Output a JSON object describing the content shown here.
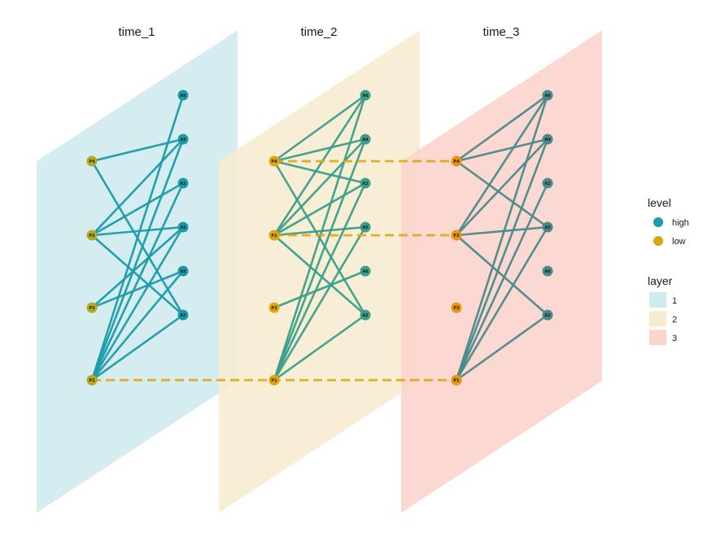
{
  "colors": {
    "plane_1": "#d0ebee",
    "plane_2": "#f6ecd0",
    "plane_3": "#fbd4cc",
    "high": "#1a9ba8",
    "low": "#d4a811",
    "interlayer": "#e0a50a"
  },
  "layers": [
    {
      "title": "time_1",
      "edge_color": "#1a9ba8",
      "high_node_color": "#1a9ba8",
      "low_node_color": "#b8aa1e",
      "low_nodes": [
        "P4",
        "P2",
        "P3",
        "P1"
      ],
      "high_nodes": [
        "A6",
        "A4",
        "A2",
        "A5",
        "A6",
        "A3"
      ],
      "edges": [
        [
          "P4",
          "A4"
        ],
        [
          "P4",
          "A3"
        ],
        [
          "P2",
          "A4"
        ],
        [
          "P2",
          "A2"
        ],
        [
          "P2",
          "A5"
        ],
        [
          "P2",
          "A3"
        ],
        [
          "P3",
          "A5"
        ],
        [
          "P3",
          "A6b"
        ],
        [
          "P1",
          "A6"
        ],
        [
          "P1",
          "A4"
        ],
        [
          "P1",
          "A2"
        ],
        [
          "P1",
          "A5"
        ],
        [
          "P1",
          "A6b"
        ],
        [
          "P1",
          "A3"
        ]
      ]
    },
    {
      "title": "time_2",
      "edge_color": "#3a9e8a",
      "high_node_color": "#3a9e8a",
      "low_node_color": "#e0a50a",
      "low_nodes": [
        "P4",
        "P2",
        "P3",
        "P1"
      ],
      "high_nodes": [
        "A6",
        "A4",
        "A2",
        "A5",
        "A6",
        "A3"
      ],
      "edges": [
        [
          "P4",
          "A6"
        ],
        [
          "P4",
          "A4"
        ],
        [
          "P4",
          "A2"
        ],
        [
          "P4",
          "A3"
        ],
        [
          "P2",
          "A6"
        ],
        [
          "P2",
          "A4"
        ],
        [
          "P2",
          "A2"
        ],
        [
          "P2",
          "A5"
        ],
        [
          "P2",
          "A3"
        ],
        [
          "P3",
          "A6b"
        ],
        [
          "P1",
          "A6"
        ],
        [
          "P1",
          "A4"
        ],
        [
          "P1",
          "A2"
        ],
        [
          "P1",
          "A5"
        ],
        [
          "P1",
          "A3"
        ]
      ]
    },
    {
      "title": "time_3",
      "edge_color": "#4a8a8a",
      "high_node_color": "#4a8a8a",
      "low_node_color": "#e8940c",
      "low_nodes": [
        "P4",
        "P2",
        "P3",
        "P1"
      ],
      "high_nodes": [
        "A6",
        "A4",
        "A2",
        "A5",
        "A6",
        "A3"
      ],
      "edges": [
        [
          "P4",
          "A4"
        ],
        [
          "P4",
          "A5"
        ],
        [
          "P4",
          "A6"
        ],
        [
          "P2",
          "A4"
        ],
        [
          "P2",
          "A5"
        ],
        [
          "P2",
          "A6"
        ],
        [
          "P2",
          "A3"
        ],
        [
          "P1",
          "A6"
        ],
        [
          "P1",
          "A4"
        ],
        [
          "P1",
          "A2"
        ],
        [
          "P1",
          "A5"
        ],
        [
          "P1",
          "A3"
        ]
      ]
    }
  ],
  "interlayer_edges": [
    {
      "from_layer": 0,
      "to_layer": 2,
      "node": "P1"
    },
    {
      "from_layer": 1,
      "to_layer": 2,
      "node": "P4"
    },
    {
      "from_layer": 1,
      "to_layer": 2,
      "node": "P2"
    }
  ],
  "legend": {
    "level_title": "level",
    "level_items": [
      {
        "label": "high",
        "color": "#1a9ba8"
      },
      {
        "label": "low",
        "color": "#d4a811"
      }
    ],
    "layer_title": "layer",
    "layer_items": [
      {
        "label": "1",
        "color": "#d0ebee"
      },
      {
        "label": "2",
        "color": "#f6ecd0"
      },
      {
        "label": "3",
        "color": "#fbd4cc"
      }
    ]
  }
}
